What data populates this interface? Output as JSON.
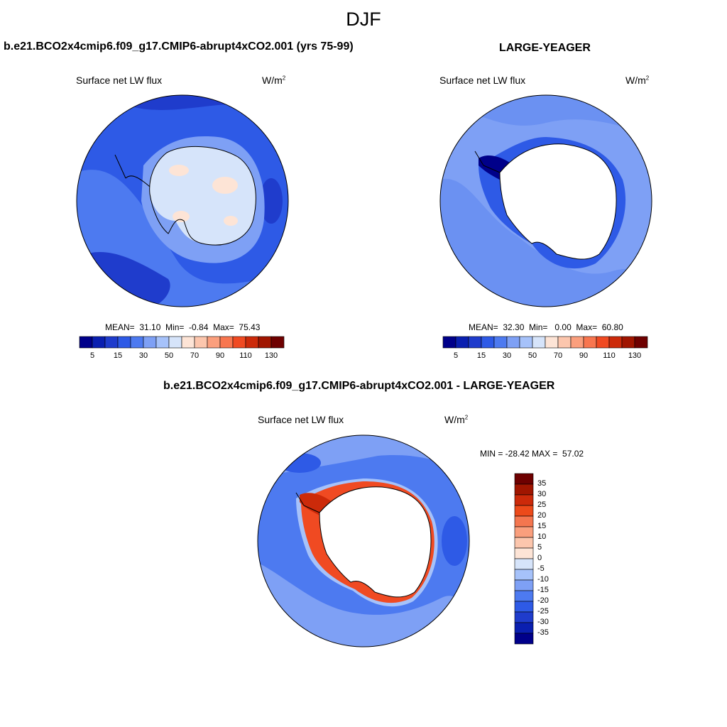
{
  "title": "DJF",
  "panels": {
    "top_left": {
      "title": "b.e21.BCO2x4cmip6.f09_g17.CMIP6-abrupt4xCO2.001 (yrs 75-99)",
      "variable": "Surface net LW flux",
      "units_base": "W/m",
      "units_exp": "2",
      "stats": "MEAN=  31.10  Min=  -0.84  Max=  75.43"
    },
    "top_right": {
      "title": "LARGE-YEAGER",
      "variable": "Surface net LW flux",
      "units_base": "W/m",
      "units_exp": "2",
      "stats": "MEAN=  32.30  Min=   0.00  Max=  60.80"
    },
    "bottom": {
      "title": "b.e21.BCO2x4cmip6.f09_g17.CMIP6-abrupt4xCO2.001 - LARGE-YEAGER",
      "variable": "Surface net LW flux",
      "units_base": "W/m",
      "units_exp": "2",
      "stats": "MIN = -28.42 MAX =  57.02"
    }
  },
  "colorbar_abs": {
    "colors": [
      "#00008a",
      "#0a1fb0",
      "#1f3ccc",
      "#2e5ae6",
      "#4d7af0",
      "#7ea0f5",
      "#a6c2fa",
      "#d6e4fa",
      "#fde4d6",
      "#fcc6ad",
      "#fb9f7d",
      "#f8764f",
      "#f04a22",
      "#cc2a0a",
      "#a01500",
      "#6e0000"
    ],
    "labels": [
      "5",
      "15",
      "30",
      "50",
      "70",
      "90",
      "110",
      "130"
    ]
  },
  "colorbar_diff": {
    "colors": [
      "#6e0000",
      "#a01500",
      "#cc2a0a",
      "#ec4a1a",
      "#f4764f",
      "#fa9f7d",
      "#fcc6ad",
      "#fde4d6",
      "#d6e4fa",
      "#a6c2fa",
      "#7ea0f5",
      "#4d7af0",
      "#2e5ae6",
      "#1f3ccc",
      "#0a1fb0",
      "#00008a"
    ],
    "labels": [
      "35",
      "30",
      "25",
      "20",
      "15",
      "10",
      "5",
      "0",
      "-5",
      "-10",
      "-15",
      "-20",
      "-25",
      "-30",
      "-35"
    ]
  }
}
